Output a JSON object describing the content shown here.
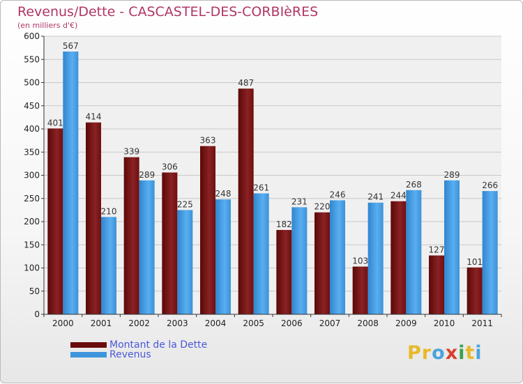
{
  "title": "Revenus/Dette - CASCASTEL-DES-CORBIèRES",
  "subtitle": "(en milliers d'€)",
  "colors": {
    "dette": "#7a1416",
    "revenus": "#4a9de0",
    "title": "#b03566",
    "legend_text": "#4a57d8"
  },
  "legend": [
    {
      "label": "Montant de la Dette",
      "color": "#6b0c0c"
    },
    {
      "label": "Revenus",
      "color": "#3d95dc"
    }
  ],
  "logo": {
    "letters": [
      "P",
      "r",
      "o",
      "x",
      "i",
      "t",
      "i"
    ],
    "colors": [
      "#e8b92a",
      "#e8b92a",
      "#4aa3df",
      "#d8402c",
      "#3aa24b",
      "#e8b92a",
      "#4aa3df"
    ]
  },
  "chart_data": {
    "type": "bar",
    "title": "Revenus/Dette - CASCASTEL-DES-CORBIèRES",
    "subtitle": "(en milliers d'€)",
    "categories": [
      "2000",
      "2001",
      "2002",
      "2003",
      "2004",
      "2005",
      "2006",
      "2007",
      "2008",
      "2009",
      "2010",
      "2011"
    ],
    "series": [
      {
        "name": "Montant de la Dette",
        "values": [
          401,
          414,
          339,
          306,
          363,
          487,
          182,
          220,
          103,
          244,
          127,
          101
        ]
      },
      {
        "name": "Revenus",
        "values": [
          567,
          210,
          289,
          225,
          248,
          261,
          231,
          246,
          241,
          268,
          289,
          266
        ]
      }
    ],
    "ylim": [
      0,
      600
    ],
    "yticks": [
      0,
      50,
      100,
      150,
      200,
      250,
      300,
      350,
      400,
      450,
      500,
      550,
      600
    ],
    "grid": true,
    "legend_position": "bottom-left",
    "xlabel": "",
    "ylabel": ""
  }
}
